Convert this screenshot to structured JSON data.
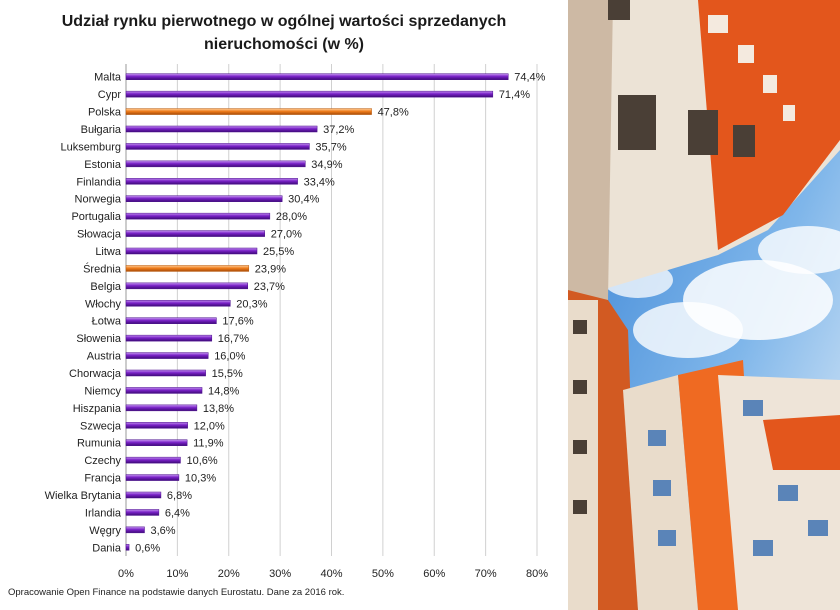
{
  "chart_data": {
    "type": "bar",
    "orientation": "horizontal",
    "title_line1": "Udział rynku pierwotnego w ogólnej wartości sprzedanych",
    "title_line2": "nieruchomości (w %)",
    "categories": [
      "Malta",
      "Cypr",
      "Polska",
      "Bułgaria",
      "Luksemburg",
      "Estonia",
      "Finlandia",
      "Norwegia",
      "Portugalia",
      "Słowacja",
      "Litwa",
      "Średnia",
      "Belgia",
      "Włochy",
      "Łotwa",
      "Słowenia",
      "Austria",
      "Chorwacja",
      "Niemcy",
      "Hiszpania",
      "Szwecja",
      "Rumunia",
      "Czechy",
      "Francja",
      "Wielka Brytania",
      "Irlandia",
      "Węgry",
      "Dania"
    ],
    "values": [
      74.4,
      71.4,
      47.8,
      37.2,
      35.7,
      34.9,
      33.4,
      30.4,
      28.0,
      27.0,
      25.5,
      23.9,
      23.7,
      20.3,
      17.6,
      16.7,
      16.0,
      15.5,
      14.8,
      13.8,
      12.0,
      11.9,
      10.6,
      10.3,
      6.8,
      6.4,
      3.6,
      0.6
    ],
    "value_labels": [
      "74,4%",
      "71,4%",
      "47,8%",
      "37,2%",
      "35,7%",
      "34,9%",
      "33,4%",
      "30,4%",
      "28,0%",
      "27,0%",
      "25,5%",
      "23,9%",
      "23,7%",
      "20,3%",
      "17,6%",
      "16,7%",
      "16,0%",
      "15,5%",
      "14,8%",
      "13,8%",
      "12,0%",
      "11,9%",
      "10,6%",
      "10,3%",
      "6,8%",
      "6,4%",
      "3,6%",
      "0,6%"
    ],
    "highlighted": [
      "Polska",
      "Średnia"
    ],
    "xlim": [
      0,
      80
    ],
    "x_ticks": [
      0,
      10,
      20,
      30,
      40,
      50,
      60,
      70,
      80
    ],
    "x_tick_labels": [
      "0%",
      "10%",
      "20%",
      "30%",
      "40%",
      "50%",
      "60%",
      "70%",
      "80%"
    ],
    "grid": true,
    "colors": {
      "default_bar": "#7a22c8",
      "highlight_bar": "#f07e1c",
      "grid": "#d0d0d0"
    }
  },
  "footer": {
    "source": "Opracowanie Open Finance na podstawie danych Eurostatu. Dane za 2016 rok."
  },
  "photo": {
    "subject": "residential-buildings-sky-photo"
  }
}
